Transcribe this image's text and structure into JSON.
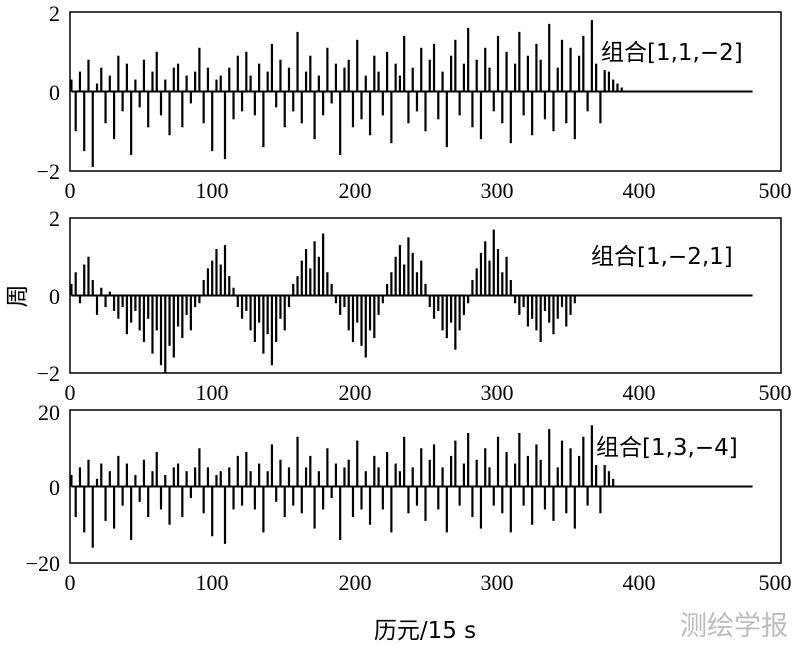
{
  "figure": {
    "ylabel": "周",
    "xlabel": "历元/15 s",
    "watermark": "测绘学报"
  },
  "chart_data": [
    {
      "type": "bar",
      "legend": "组合[1,1,−2]",
      "legend_position": "top-right",
      "xlim": [
        0,
        500
      ],
      "ylim": [
        -2,
        2
      ],
      "xticks": [
        "0",
        "100",
        "200",
        "300",
        "400",
        "500"
      ],
      "yticks": [
        "−2",
        "0",
        "2"
      ],
      "x_start": 1,
      "x_step": 3,
      "x_data_end": 376,
      "x_line_end": 480,
      "values": [
        0.3,
        -1.0,
        0.5,
        -1.5,
        0.8,
        -1.9,
        0.2,
        0.6,
        -0.8,
        0.4,
        -1.2,
        0.9,
        -0.5,
        0.7,
        -1.6,
        0.3,
        -0.4,
        0.8,
        -0.9,
        0.5,
        1.0,
        -0.6,
        0.3,
        -1.1,
        0.6,
        0.7,
        -0.9,
        0.4,
        -0.3,
        0.5,
        1.1,
        -0.8,
        0.6,
        -1.5,
        0.3,
        0.4,
        -1.7,
        0.6,
        -0.7,
        0.9,
        -0.5,
        1.0,
        0.4,
        -0.6,
        0.7,
        -1.4,
        0.5,
        1.2,
        -0.4,
        0.8,
        -0.9,
        0.6,
        -0.5,
        1.5,
        -0.8,
        0.5,
        0.9,
        -1.2,
        0.4,
        -0.6,
        1.1,
        -0.3,
        0.7,
        -1.6,
        0.6,
        0.8,
        -0.9,
        1.3,
        -0.7,
        0.4,
        -1.1,
        0.9,
        0.5,
        -0.6,
        1.0,
        -1.3,
        0.7,
        0.4,
        1.4,
        -0.8,
        0.6,
        -0.5,
        1.1,
        -1.0,
        0.8,
        1.2,
        -0.7,
        0.5,
        -1.4,
        0.9,
        1.3,
        -0.6,
        0.7,
        1.6,
        -0.9,
        0.8,
        -1.2,
        1.1,
        0.6,
        -0.5,
        1.4,
        -0.8,
        1.0,
        -1.3,
        0.7,
        1.5,
        -0.6,
        0.9,
        -1.1,
        1.2,
        0.8,
        -0.7,
        1.7,
        -1.0,
        0.6,
        1.3,
        -0.8,
        1.1,
        -1.2,
        0.9,
        1.4,
        -0.5,
        1.8,
        0.7,
        -0.8,
        1.2,
        0.5,
        0.3,
        0.2,
        0.1
      ]
    },
    {
      "type": "bar",
      "legend": "组合[1,−2,1]",
      "legend_position": "top-right",
      "xlim": [
        0,
        500
      ],
      "ylim": [
        -2,
        2
      ],
      "xticks": [
        "0",
        "100",
        "200",
        "300",
        "400",
        "500"
      ],
      "yticks": [
        "−2",
        "0",
        "2"
      ],
      "x_start": 1,
      "x_step": 3,
      "x_data_end": 376,
      "x_line_end": 480,
      "values": [
        0.3,
        0.6,
        -0.2,
        0.8,
        1.0,
        0.4,
        -0.5,
        0.2,
        -0.3,
        0.1,
        -0.4,
        -0.6,
        -0.3,
        -1.0,
        -0.7,
        -0.4,
        -0.9,
        -1.2,
        -0.6,
        -1.5,
        -0.9,
        -1.8,
        -2.0,
        -1.3,
        -1.6,
        -0.8,
        -1.1,
        -0.5,
        -0.9,
        -0.3,
        -0.2,
        0.4,
        0.7,
        0.9,
        1.2,
        0.8,
        1.3,
        0.5,
        0.2,
        -0.3,
        -0.6,
        -0.4,
        -0.9,
        -1.2,
        -0.7,
        -1.5,
        -1.0,
        -1.8,
        -1.2,
        -0.6,
        -0.9,
        -0.3,
        0.3,
        0.5,
        0.9,
        1.2,
        0.7,
        1.4,
        1.0,
        1.6,
        0.6,
        0.3,
        -0.2,
        -0.5,
        -0.3,
        -0.9,
        -1.2,
        -0.7,
        -1.3,
        -1.6,
        -0.9,
        -1.1,
        -0.5,
        -0.2,
        0.3,
        0.6,
        1.0,
        1.3,
        0.8,
        1.5,
        1.1,
        0.6,
        0.9,
        0.3,
        -0.3,
        -0.6,
        -0.4,
        -0.9,
        -1.1,
        -0.7,
        -1.4,
        -0.9,
        -0.5,
        -0.2,
        0.4,
        0.7,
        1.1,
        1.4,
        0.9,
        1.7,
        1.2,
        0.6,
        1.0,
        0.4,
        -0.2,
        -0.5,
        -0.3,
        -0.8,
        -0.6,
        -0.9,
        -1.2,
        -0.4,
        -0.7,
        -1.0,
        -0.6,
        -0.3,
        -0.8,
        -0.5,
        -0.2
      ]
    },
    {
      "type": "bar",
      "legend": "组合[1,3,−4]",
      "legend_position": "top-right",
      "xlim": [
        0,
        500
      ],
      "ylim": [
        -20,
        20
      ],
      "xticks": [
        "0",
        "100",
        "200",
        "300",
        "400",
        "500"
      ],
      "yticks": [
        "−20",
        "0",
        "20"
      ],
      "x_start": 1,
      "x_step": 3,
      "x_data_end": 373,
      "x_line_end": 480,
      "values": [
        3,
        -8,
        5,
        -12,
        7,
        -16,
        2,
        6,
        -9,
        4,
        -11,
        8,
        -5,
        6,
        -14,
        3,
        -4,
        7,
        -8,
        4,
        9,
        -6,
        3,
        -10,
        5,
        6,
        -8,
        4,
        -3,
        5,
        10,
        -7,
        5,
        -13,
        3,
        4,
        -15,
        5,
        -6,
        8,
        -5,
        9,
        4,
        -6,
        6,
        -12,
        4,
        11,
        -4,
        7,
        -8,
        5,
        -5,
        13,
        -7,
        5,
        8,
        -11,
        4,
        -6,
        10,
        -3,
        6,
        -14,
        5,
        7,
        -8,
        12,
        -6,
        4,
        -10,
        8,
        5,
        -6,
        9,
        -12,
        6,
        4,
        13,
        -7,
        5,
        -5,
        10,
        -9,
        7,
        11,
        -6,
        5,
        -12,
        8,
        12,
        -5,
        6,
        14,
        -8,
        7,
        -11,
        10,
        5,
        -5,
        13,
        -7,
        9,
        -12,
        6,
        14,
        -5,
        8,
        -10,
        11,
        7,
        -6,
        15,
        -9,
        5,
        12,
        -7,
        10,
        -11,
        8,
        13,
        -5,
        16,
        6,
        -7,
        11,
        4,
        2
      ]
    }
  ]
}
